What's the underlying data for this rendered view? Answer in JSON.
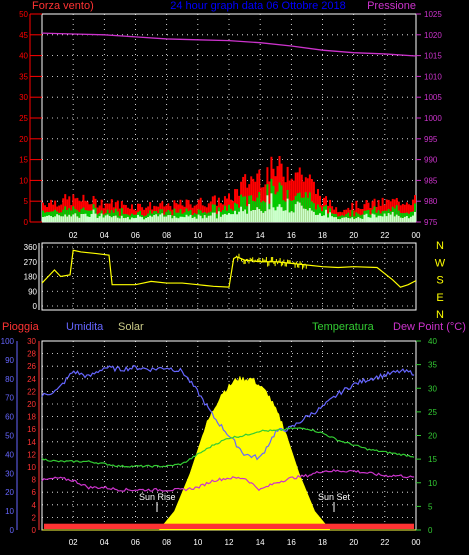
{
  "header": {
    "left_label": "Forza vento)",
    "center_title": "24 hour graph data 06 Ottobre 2018",
    "right_label": "Pressione"
  },
  "colors": {
    "wind": "#ff0000",
    "gust": "#00cc00",
    "wind_low": "#ccffcc",
    "pressure": "#cc33cc",
    "direction": "#ffff00",
    "humidity": "#6666ff",
    "temperature": "#33cc33",
    "dewpoint": "#cc33cc",
    "solar": "#ffff00",
    "rain": "#ff3333",
    "grid": "#ffffff",
    "title": "#0000ff"
  },
  "time_ticks": [
    "02",
    "04",
    "06",
    "08",
    "10",
    "12",
    "14",
    "16",
    "18",
    "20",
    "22",
    "00"
  ],
  "chart_data": [
    {
      "type": "line",
      "name": "wind-pressure",
      "left_axis": {
        "label": "Forza vento)",
        "min": 0,
        "max": 50,
        "ticks": [
          "0",
          "5",
          "10",
          "15",
          "20",
          "25",
          "30",
          "35",
          "40",
          "45",
          "50"
        ]
      },
      "right_axis": {
        "label": "Pressione",
        "min": 975,
        "max": 1025,
        "ticks": [
          "975",
          "980",
          "985",
          "990",
          "995",
          "1000",
          "1005",
          "1010",
          "1015",
          "1020",
          "1025"
        ]
      },
      "pressure": {
        "x_hours": [
          0,
          2,
          4,
          6,
          8,
          10,
          12,
          14,
          16,
          18,
          20,
          22,
          24
        ],
        "values": [
          1020.4,
          1020.2,
          1020.0,
          1019.5,
          1019.0,
          1018.8,
          1018.6,
          1018.1,
          1017.3,
          1016.3,
          1015.7,
          1015.4,
          1014.9
        ]
      },
      "wind_envelope": {
        "x_hours": [
          0,
          2,
          4,
          6,
          8,
          10,
          12,
          13,
          14,
          15,
          16,
          17,
          18,
          19,
          20,
          22,
          24
        ],
        "values": [
          6,
          7,
          6,
          5,
          5,
          6,
          7,
          12,
          15,
          16,
          17,
          14,
          7,
          4,
          5,
          6,
          7
        ]
      },
      "grid": true
    },
    {
      "type": "line",
      "name": "wind-direction",
      "axis_ticks": [
        "360",
        "270",
        "180",
        "90",
        "0"
      ],
      "right_letters": [
        "N",
        "W",
        "S",
        "E",
        "N"
      ],
      "x_hours": [
        0,
        0.3,
        0.8,
        1.2,
        1.8,
        2.0,
        2.5,
        3.5,
        4.3,
        4.5,
        6.0,
        6.5,
        7.0,
        8.0,
        9.0,
        10.0,
        10.5,
        11.0,
        12.0,
        12.3,
        12.5,
        13.0,
        14.0,
        15.0,
        16.0,
        17.0,
        18.0,
        19.0,
        20.0,
        21.5,
        22.5,
        23.0,
        23.5,
        24.0
      ],
      "values": [
        140,
        170,
        220,
        180,
        190,
        340,
        330,
        320,
        310,
        130,
        130,
        140,
        150,
        140,
        140,
        130,
        125,
        120,
        115,
        290,
        300,
        280,
        270,
        270,
        260,
        250,
        240,
        235,
        240,
        235,
        160,
        115,
        130,
        155
      ],
      "grid": true
    },
    {
      "type": "line",
      "name": "rain-humidity-solar-temperature",
      "labels": {
        "rain": "Pioggia",
        "humidity": "Umidita",
        "solar": "Solar",
        "temperature": "Temperatura",
        "dewpoint": "Dew Point (°C)"
      },
      "humidity_axis": {
        "min": 0,
        "max": 100,
        "ticks": [
          "0",
          "10",
          "20",
          "30",
          "40",
          "50",
          "60",
          "70",
          "80",
          "90",
          "100"
        ]
      },
      "rain_axis": {
        "min": 0,
        "max": 30,
        "ticks": [
          "0",
          "2",
          "4",
          "6",
          "8",
          "10",
          "12",
          "14",
          "16",
          "18",
          "20",
          "22",
          "24",
          "26",
          "28",
          "30"
        ]
      },
      "temp_axis": {
        "min": 0,
        "max": 40,
        "ticks": [
          "0",
          "5",
          "10",
          "15",
          "20",
          "25",
          "30",
          "35",
          "40"
        ]
      },
      "humidity": {
        "x_hours": [
          0,
          1,
          2,
          3,
          4,
          5,
          6,
          7,
          8,
          9,
          10,
          11,
          12,
          13,
          14,
          15,
          16,
          17,
          18,
          19,
          20,
          21,
          22,
          23,
          24
        ],
        "values": [
          71,
          74,
          84,
          81,
          86,
          85,
          86,
          85,
          86,
          84,
          73,
          60,
          50,
          40,
          38,
          52,
          54,
          60,
          65,
          72,
          77,
          80,
          82,
          84,
          83
        ]
      },
      "temperature": {
        "x_hours": [
          0,
          1,
          2,
          3,
          4,
          5,
          6,
          7,
          8,
          9,
          10,
          11,
          12,
          13,
          14,
          15,
          16,
          17,
          18,
          19,
          20,
          21,
          22,
          23,
          24
        ],
        "values": [
          15.0,
          14.5,
          14.5,
          14.5,
          14.0,
          13.5,
          13.5,
          13.5,
          13.5,
          14.0,
          16.0,
          18.0,
          19.5,
          20.0,
          21.0,
          21.0,
          21.5,
          21.5,
          20.5,
          19.0,
          18.0,
          17.0,
          16.5,
          16.0,
          15.5
        ]
      },
      "dewpoint": {
        "x_hours": [
          0,
          1,
          2,
          3,
          4,
          5,
          6,
          7,
          8,
          9,
          10,
          11,
          12,
          13,
          14,
          15,
          16,
          17,
          18,
          19,
          20,
          21,
          22,
          23,
          24
        ],
        "values": [
          10.5,
          11.0,
          10.5,
          9.0,
          9.0,
          8.5,
          8.5,
          8.5,
          8.5,
          8.5,
          9.0,
          10.5,
          11.0,
          11.0,
          8.5,
          10.0,
          11.0,
          11.5,
          12.5,
          12.5,
          12.5,
          12.0,
          11.5,
          11.5,
          11.0
        ]
      },
      "solar": {
        "x_hours": [
          0,
          7.5,
          8.5,
          9.5,
          10.5,
          11.5,
          12.5,
          13.5,
          14.5,
          15.5,
          16.5,
          17.5,
          18.5,
          24
        ],
        "values": [
          0,
          0,
          10,
          30,
          55,
          72,
          80,
          80,
          72,
          55,
          30,
          10,
          0,
          0
        ]
      },
      "rain_baseline": 1,
      "annotations": [
        "Sun Rise",
        "Sun Set"
      ],
      "grid": true
    }
  ]
}
